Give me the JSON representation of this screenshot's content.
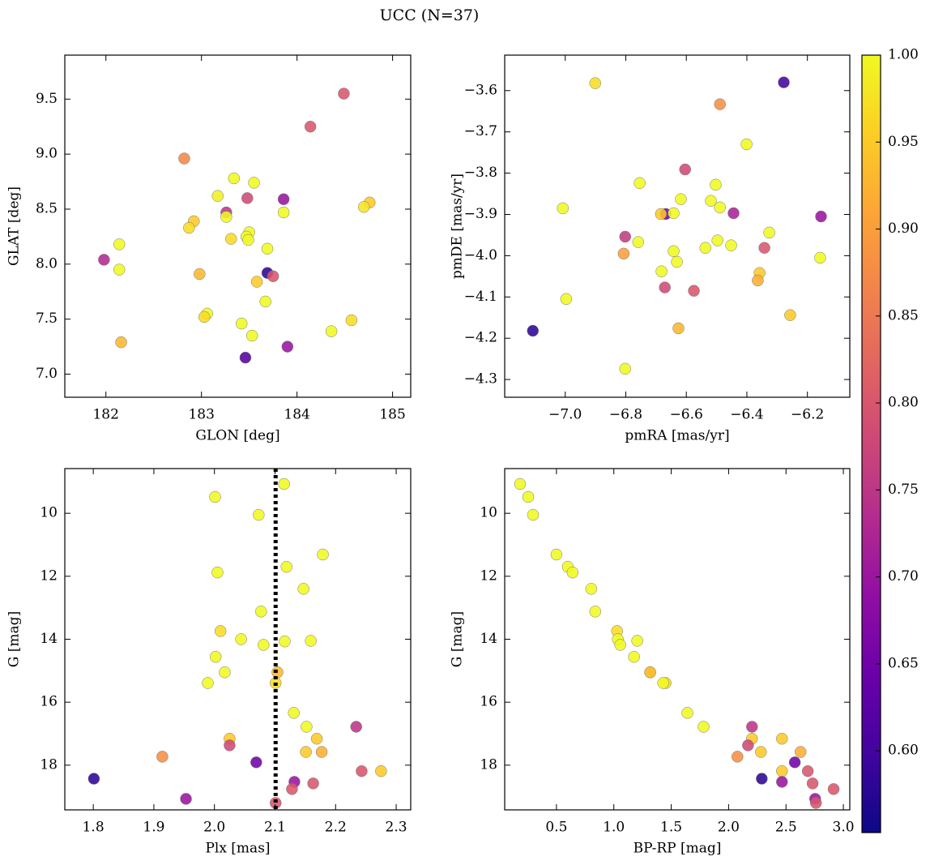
{
  "title": "UCC (N=37)",
  "colorbar": {
    "colormap": "plasma",
    "clim": [
      0.553,
      1.0
    ],
    "ticks": [
      {
        "value": 0.6,
        "label": "0.60"
      },
      0.65,
      {
        "value": 0.7,
        "label": "0.70"
      },
      0.75,
      {
        "value": 0.8,
        "label": "0.80"
      },
      0.85,
      {
        "value": 0.9,
        "label": "0.90"
      },
      0.95,
      {
        "value": 1.0,
        "label": "1.00"
      }
    ]
  },
  "chart_data": [
    {
      "type": "scatter",
      "xlabel": "GLON [deg]",
      "ylabel": "GLAT [deg]",
      "x": [
        184.49,
        184.14,
        182.82,
        183.34,
        183.55,
        183.17,
        183.48,
        183.86,
        184.76,
        184.7,
        183.26,
        183.86,
        182.92,
        183.26,
        182.87,
        183.5,
        183.47,
        183.31,
        183.49,
        182.14,
        183.69,
        181.98,
        182.14,
        183.69,
        182.98,
        183.75,
        183.58,
        183.67,
        183.06,
        183.03,
        184.57,
        184.36,
        183.42,
        183.53,
        182.16,
        183.9,
        183.46
      ],
      "values": [
        9.55,
        9.25,
        8.96,
        8.78,
        8.74,
        8.62,
        8.6,
        8.59,
        8.56,
        8.52,
        8.47,
        8.47,
        8.39,
        8.43,
        8.33,
        8.29,
        8.25,
        8.23,
        8.22,
        8.18,
        8.14,
        8.04,
        7.95,
        7.92,
        7.91,
        7.89,
        7.84,
        7.66,
        7.55,
        7.52,
        7.49,
        7.39,
        7.46,
        7.35,
        7.29,
        7.25,
        7.15
      ],
      "color_values": [
        0.8,
        0.8,
        0.87,
        1,
        1,
        0.99,
        0.78,
        0.7,
        0.95,
        0.98,
        0.75,
        1,
        0.95,
        1,
        0.97,
        1,
        1,
        0.97,
        1,
        1,
        1,
        0.73,
        1,
        0.58,
        0.93,
        0.8,
        0.95,
        1,
        1,
        0.97,
        0.97,
        1,
        1,
        1,
        0.93,
        0.7,
        0.62
      ],
      "xlim": [
        181.57,
        185.19
      ],
      "ylim": [
        6.79,
        9.9
      ],
      "xticks": [
        182,
        183,
        184,
        185
      ],
      "yticks": [
        {
          "value": 7.0,
          "label": "7.0"
        },
        7.5,
        {
          "value": 8.0,
          "label": "8.0"
        },
        8.5,
        {
          "value": 9.0,
          "label": "9.0"
        },
        9.5
      ]
    },
    {
      "type": "scatter",
      "xlabel": "pmRA [mas/yr]",
      "ylabel": "pmDE [mas/yr]",
      "x": [
        -6.901,
        -6.278,
        -6.489,
        -6.401,
        -6.604,
        -7.008,
        -6.754,
        -6.503,
        -6.618,
        -6.519,
        -6.489,
        -6.155,
        -6.444,
        -6.668,
        -6.684,
        -6.642,
        -6.802,
        -6.326,
        -6.759,
        -6.497,
        -6.452,
        -6.537,
        -6.342,
        -6.642,
        -6.807,
        -6.158,
        -6.631,
        -6.682,
        -6.358,
        -6.364,
        -6.671,
        -6.575,
        -6.997,
        -6.257,
        -6.626,
        -7.107,
        -6.802
      ],
      "values": [
        -3.582,
        -3.58,
        -3.633,
        -3.73,
        -3.791,
        -3.885,
        -3.824,
        -3.828,
        -3.863,
        -3.867,
        -3.883,
        -3.905,
        -3.897,
        -3.899,
        -3.899,
        -3.897,
        -3.954,
        -3.944,
        -3.967,
        -3.963,
        -3.975,
        -3.981,
        -3.981,
        -3.989,
        -3.995,
        -4.005,
        -4.015,
        -4.038,
        -4.042,
        -4.06,
        -4.077,
        -4.085,
        -4.105,
        -4.144,
        -4.176,
        -4.182,
        -4.274
      ],
      "color_values": [
        0.97,
        0.6,
        0.88,
        1,
        0.78,
        1,
        1,
        1,
        1,
        1,
        1,
        0.7,
        0.72,
        0.65,
        0.95,
        1,
        0.76,
        1,
        1,
        1,
        1,
        1,
        0.8,
        1,
        0.9,
        1,
        1,
        1,
        0.95,
        0.92,
        0.78,
        0.8,
        1,
        0.95,
        0.93,
        0.58,
        1
      ],
      "xlim": [
        -7.2,
        -6.06
      ],
      "ylim": [
        -4.343,
        -3.514
      ],
      "xticks": [
        {
          "value": -7.0,
          "label": "−7.0"
        },
        {
          "value": -6.8,
          "label": "−6.8"
        },
        {
          "value": -6.6,
          "label": "−6.6"
        },
        {
          "value": -6.4,
          "label": "−6.4"
        },
        {
          "value": -6.2,
          "label": "−6.2"
        }
      ],
      "yticks": [
        {
          "value": -4.3,
          "label": "−4.3"
        },
        {
          "value": -4.2,
          "label": "−4.2"
        },
        {
          "value": -4.1,
          "label": "−4.1"
        },
        {
          "value": -4.0,
          "label": "−4.0"
        },
        {
          "value": -3.9,
          "label": "−3.9"
        },
        {
          "value": -3.8,
          "label": "−3.8"
        },
        {
          "value": -3.7,
          "label": "−3.7"
        },
        {
          "value": -3.6,
          "label": "−3.6"
        }
      ]
    },
    {
      "type": "scatter",
      "xlabel": "Plx [mas]",
      "ylabel": "G [mag]",
      "x": [
        2.115,
        2.001,
        2.073,
        2.179,
        2.119,
        2.005,
        2.147,
        2.077,
        2.01,
        2.044,
        2.159,
        2.116,
        2.081,
        2.002,
        2.017,
        2.104,
        2.101,
        1.989,
        2.131,
        2.234,
        2.152,
        2.169,
        2.025,
        2.025,
        2.151,
        2.177,
        1.914,
        2.069,
        2.243,
        2.275,
        1.801,
        2.132,
        2.163,
        2.128,
        1.953,
        2.101
      ],
      "values": [
        9.07,
        9.48,
        10.05,
        11.31,
        11.7,
        11.88,
        12.4,
        13.12,
        13.74,
        14.0,
        14.05,
        14.07,
        14.18,
        14.56,
        15.05,
        15.05,
        15.39,
        15.39,
        16.34,
        16.78,
        16.78,
        17.16,
        17.16,
        17.37,
        17.58,
        17.58,
        17.73,
        17.91,
        18.19,
        18.19,
        18.43,
        18.53,
        18.58,
        18.76,
        19.07,
        19.2
      ],
      "color_values": [
        1,
        1,
        1,
        1,
        1,
        1,
        1,
        1,
        0.97,
        1,
        1,
        1,
        1,
        1,
        1,
        0.93,
        0.97,
        1,
        1,
        0.75,
        1,
        0.95,
        0.95,
        0.78,
        0.95,
        0.92,
        0.88,
        0.65,
        0.8,
        0.95,
        0.58,
        0.7,
        0.8,
        0.8,
        0.7,
        0.8
      ],
      "vline": 2.101,
      "xlim": [
        1.753,
        2.324
      ],
      "ylim": [
        19.42,
        8.58
      ],
      "xticks": [
        1.8,
        1.9,
        {
          "value": 2.0,
          "label": "2.0"
        },
        2.1,
        2.2,
        2.3
      ],
      "yticks": [
        10,
        12,
        14,
        16,
        18
      ]
    },
    {
      "type": "scatter",
      "xlabel": "BP-RP [mag]",
      "ylabel": "G [mag]",
      "x": [
        0.183,
        0.254,
        0.296,
        0.5,
        0.599,
        0.641,
        0.803,
        0.838,
        1.028,
        1.035,
        1.204,
        1.056,
        1.176,
        1.317,
        1.317,
        1.451,
        1.43,
        1.641,
        1.782,
        2.204,
        2.204,
        2.465,
        2.169,
        2.282,
        2.627,
        2.077,
        2.577,
        2.69,
        2.465,
        2.289,
        2.465,
        2.732,
        2.915,
        2.754,
        2.761
      ],
      "values": [
        9.07,
        9.48,
        10.05,
        11.31,
        11.7,
        11.88,
        12.4,
        13.12,
        13.74,
        14.0,
        14.05,
        14.18,
        14.56,
        15.05,
        15.05,
        15.39,
        15.39,
        16.34,
        16.78,
        16.78,
        17.16,
        17.16,
        17.37,
        17.58,
        17.58,
        17.73,
        17.91,
        18.19,
        18.19,
        18.43,
        18.53,
        18.58,
        18.76,
        19.07,
        19.2
      ],
      "color_values": [
        1,
        1,
        1,
        1,
        1,
        1,
        1,
        1,
        0.97,
        1,
        1,
        1,
        1,
        1,
        0.93,
        0.97,
        1,
        1,
        1,
        0.75,
        0.95,
        0.95,
        0.78,
        0.95,
        0.92,
        0.88,
        0.65,
        0.8,
        0.95,
        0.58,
        0.7,
        0.8,
        0.8,
        0.7,
        0.8
      ],
      "xlim": [
        0.049,
        3.056
      ],
      "ylim": [
        19.42,
        8.58
      ],
      "xticks": [
        0.5,
        {
          "value": 1.0,
          "label": "1.0"
        },
        1.5,
        {
          "value": 2.0,
          "label": "2.0"
        },
        2.5,
        {
          "value": 3.0,
          "label": "3.0"
        }
      ],
      "yticks": [
        10,
        12,
        14,
        16,
        18
      ]
    }
  ]
}
